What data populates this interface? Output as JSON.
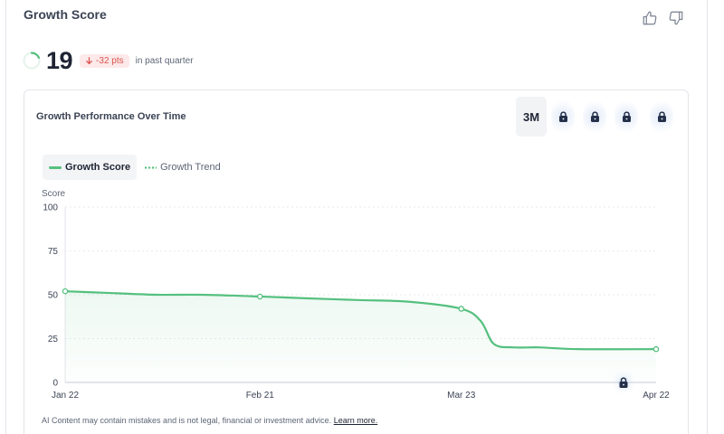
{
  "header": {
    "title": "Growth Score",
    "thumbs_up_icon": "thumbs-up-icon",
    "thumbs_down_icon": "thumbs-down-icon"
  },
  "score": {
    "value": "19",
    "delta": "-32 pts",
    "delta_caption": "in past quarter",
    "ring_progress": 0.19
  },
  "chart_card": {
    "title": "Growth Performance Over Time",
    "active_range": "3M",
    "locked_ranges": 4,
    "legend": {
      "series_1": "Growth Score",
      "series_2": "Growth Trend"
    }
  },
  "disclaimer": {
    "text": "AI Content may contain mistakes and is not legal, financial or investment advice.",
    "link": "Learn more."
  },
  "colors": {
    "accent_green": "#55c07f",
    "negative_red": "#d9534f",
    "lock_icon": "#24304a"
  },
  "chart_data": {
    "type": "line",
    "ylabel": "Score",
    "xlabel": "",
    "ylim": [
      0,
      100
    ],
    "y_ticks": [
      "100",
      "75",
      "50",
      "25",
      "0"
    ],
    "x_ticks": [
      "Jan 22",
      "Feb 21",
      "Mar 23",
      "Apr 22"
    ],
    "x": [
      "2024-01-22",
      "2024-01-29",
      "2024-02-05",
      "2024-02-12",
      "2024-02-21",
      "2024-02-28",
      "2024-03-07",
      "2024-03-15",
      "2024-03-23",
      "2024-03-26",
      "2024-03-28",
      "2024-03-31",
      "2024-04-04",
      "2024-04-10",
      "2024-04-22"
    ],
    "series": [
      {
        "name": "Growth Score",
        "values": [
          52,
          51,
          50,
          50,
          49,
          48,
          47,
          46,
          42,
          35,
          22,
          20,
          20,
          19,
          19
        ]
      }
    ],
    "grid": true,
    "legend_position": "top-left"
  }
}
